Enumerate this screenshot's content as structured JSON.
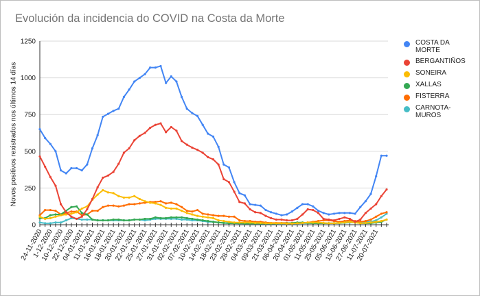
{
  "chart_data": {
    "type": "line",
    "title": "Evolución da incidencia do COVID na Costa da Morte",
    "xlabel": "",
    "ylabel": "Novos positivos rexistrados nos últimos 14 días",
    "ylim": [
      0,
      1250
    ],
    "yticks": [
      0,
      250,
      500,
      750,
      1000,
      1250
    ],
    "grid": true,
    "legend_position": "right",
    "x_tick_labels": [
      "24-11-2020",
      "1-12-2020",
      "10-12-2020",
      "22-12-2020",
      "04-01-2021",
      "11-01-2021",
      "16-01-2021",
      "18-01-2021",
      "20-01-2021",
      "22-01-2021",
      "25-01-2021",
      "27-01-2021",
      "31-01-2021",
      "02-02-2021",
      "07-02-2021",
      "10-02-2021",
      "14-02-2021",
      "18-02-2021",
      "23-02-2021",
      "28-02-2021",
      "04-03-2021",
      "09-03-2021",
      "21-03-2021",
      "06-04-2021",
      "20-04-2021",
      "01-05-2021",
      "11-05-2021",
      "25-05-2021",
      "05-06-2021",
      "15-06-2021",
      "27-06-2021",
      "11-07-2021",
      "20-07-2021"
    ],
    "series": [
      {
        "name": "COSTA DA MORTE",
        "color": "#4285f4",
        "values": [
          650,
          590,
          550,
          500,
          370,
          350,
          385,
          385,
          370,
          410,
          520,
          610,
          735,
          755,
          775,
          790,
          870,
          920,
          975,
          1000,
          1025,
          1070,
          1070,
          1080,
          965,
          1010,
          975,
          870,
          790,
          760,
          740,
          680,
          620,
          600,
          530,
          410,
          390,
          290,
          215,
          200,
          140,
          135,
          130,
          100,
          85,
          75,
          65,
          70,
          90,
          115,
          140,
          140,
          125,
          95,
          80,
          70,
          75,
          80,
          80,
          80,
          75,
          120,
          160,
          210,
          330,
          470,
          470
        ]
      },
      {
        "name": "BERGANTIÑOS",
        "color": "#ea4335",
        "values": [
          465,
          395,
          325,
          265,
          140,
          85,
          55,
          40,
          55,
          105,
          175,
          255,
          320,
          335,
          360,
          415,
          490,
          520,
          575,
          605,
          625,
          660,
          680,
          690,
          630,
          665,
          640,
          570,
          545,
          525,
          510,
          490,
          460,
          445,
          410,
          310,
          290,
          225,
          155,
          145,
          105,
          85,
          80,
          60,
          45,
          35,
          35,
          30,
          30,
          40,
          70,
          105,
          100,
          80,
          40,
          35,
          30,
          40,
          50,
          40,
          20,
          35,
          80,
          110,
          140,
          195,
          240
        ]
      },
      {
        "name": "SONEIRA",
        "color": "#fbbc04",
        "values": [
          55,
          40,
          45,
          55,
          65,
          70,
          75,
          85,
          110,
          125,
          170,
          205,
          235,
          220,
          215,
          195,
          185,
          185,
          195,
          175,
          160,
          150,
          145,
          135,
          115,
          110,
          110,
          95,
          80,
          70,
          60,
          55,
          50,
          45,
          30,
          25,
          20,
          15,
          15,
          15,
          15,
          12,
          12,
          10,
          10,
          10,
          10,
          8,
          8,
          10,
          12,
          15,
          15,
          15,
          12,
          10,
          10,
          12,
          15,
          20,
          15,
          10,
          12,
          15,
          20,
          25,
          35
        ]
      },
      {
        "name": "XALLAS",
        "color": "#34a853",
        "values": [
          45,
          45,
          65,
          70,
          70,
          95,
          120,
          125,
          80,
          70,
          35,
          30,
          30,
          30,
          35,
          35,
          30,
          30,
          35,
          35,
          40,
          40,
          50,
          45,
          45,
          50,
          50,
          50,
          45,
          40,
          35,
          30,
          25,
          20,
          15,
          12,
          10,
          10,
          10,
          8,
          8,
          8,
          8,
          8,
          8,
          8,
          10,
          10,
          12,
          15,
          15,
          12,
          10,
          10,
          10,
          10,
          10,
          12,
          15,
          20,
          15,
          10,
          10,
          10,
          15,
          20,
          35
        ]
      },
      {
        "name": "FISTERRA",
        "color": "#ff6d01",
        "values": [
          65,
          100,
          100,
          95,
          70,
          80,
          90,
          90,
          65,
          70,
          95,
          95,
          120,
          130,
          130,
          125,
          130,
          140,
          140,
          145,
          150,
          155,
          155,
          160,
          145,
          150,
          140,
          120,
          95,
          90,
          100,
          75,
          70,
          65,
          60,
          60,
          55,
          55,
          30,
          25,
          25,
          20,
          20,
          15,
          12,
          12,
          12,
          12,
          10,
          10,
          12,
          15,
          20,
          25,
          30,
          30,
          25,
          20,
          25,
          30,
          25,
          20,
          25,
          35,
          55,
          75,
          85
        ]
      },
      {
        "name": "CARNOTA-MUROS",
        "color": "#46bdc6",
        "values": [
          15,
          10,
          10,
          15,
          15,
          30,
          45,
          40,
          35,
          35,
          35,
          30,
          30,
          30,
          30,
          30,
          30,
          30,
          35,
          35,
          30,
          35,
          40,
          40,
          40,
          40,
          40,
          35,
          35,
          30,
          30,
          25,
          20,
          20,
          15,
          12,
          10,
          10,
          8,
          8,
          8,
          8,
          8,
          8,
          8,
          8,
          8,
          8,
          8,
          8,
          10,
          10,
          10,
          10,
          10,
          10,
          10,
          10,
          12,
          15,
          15,
          20,
          20,
          20,
          30,
          50,
          75
        ]
      }
    ]
  }
}
